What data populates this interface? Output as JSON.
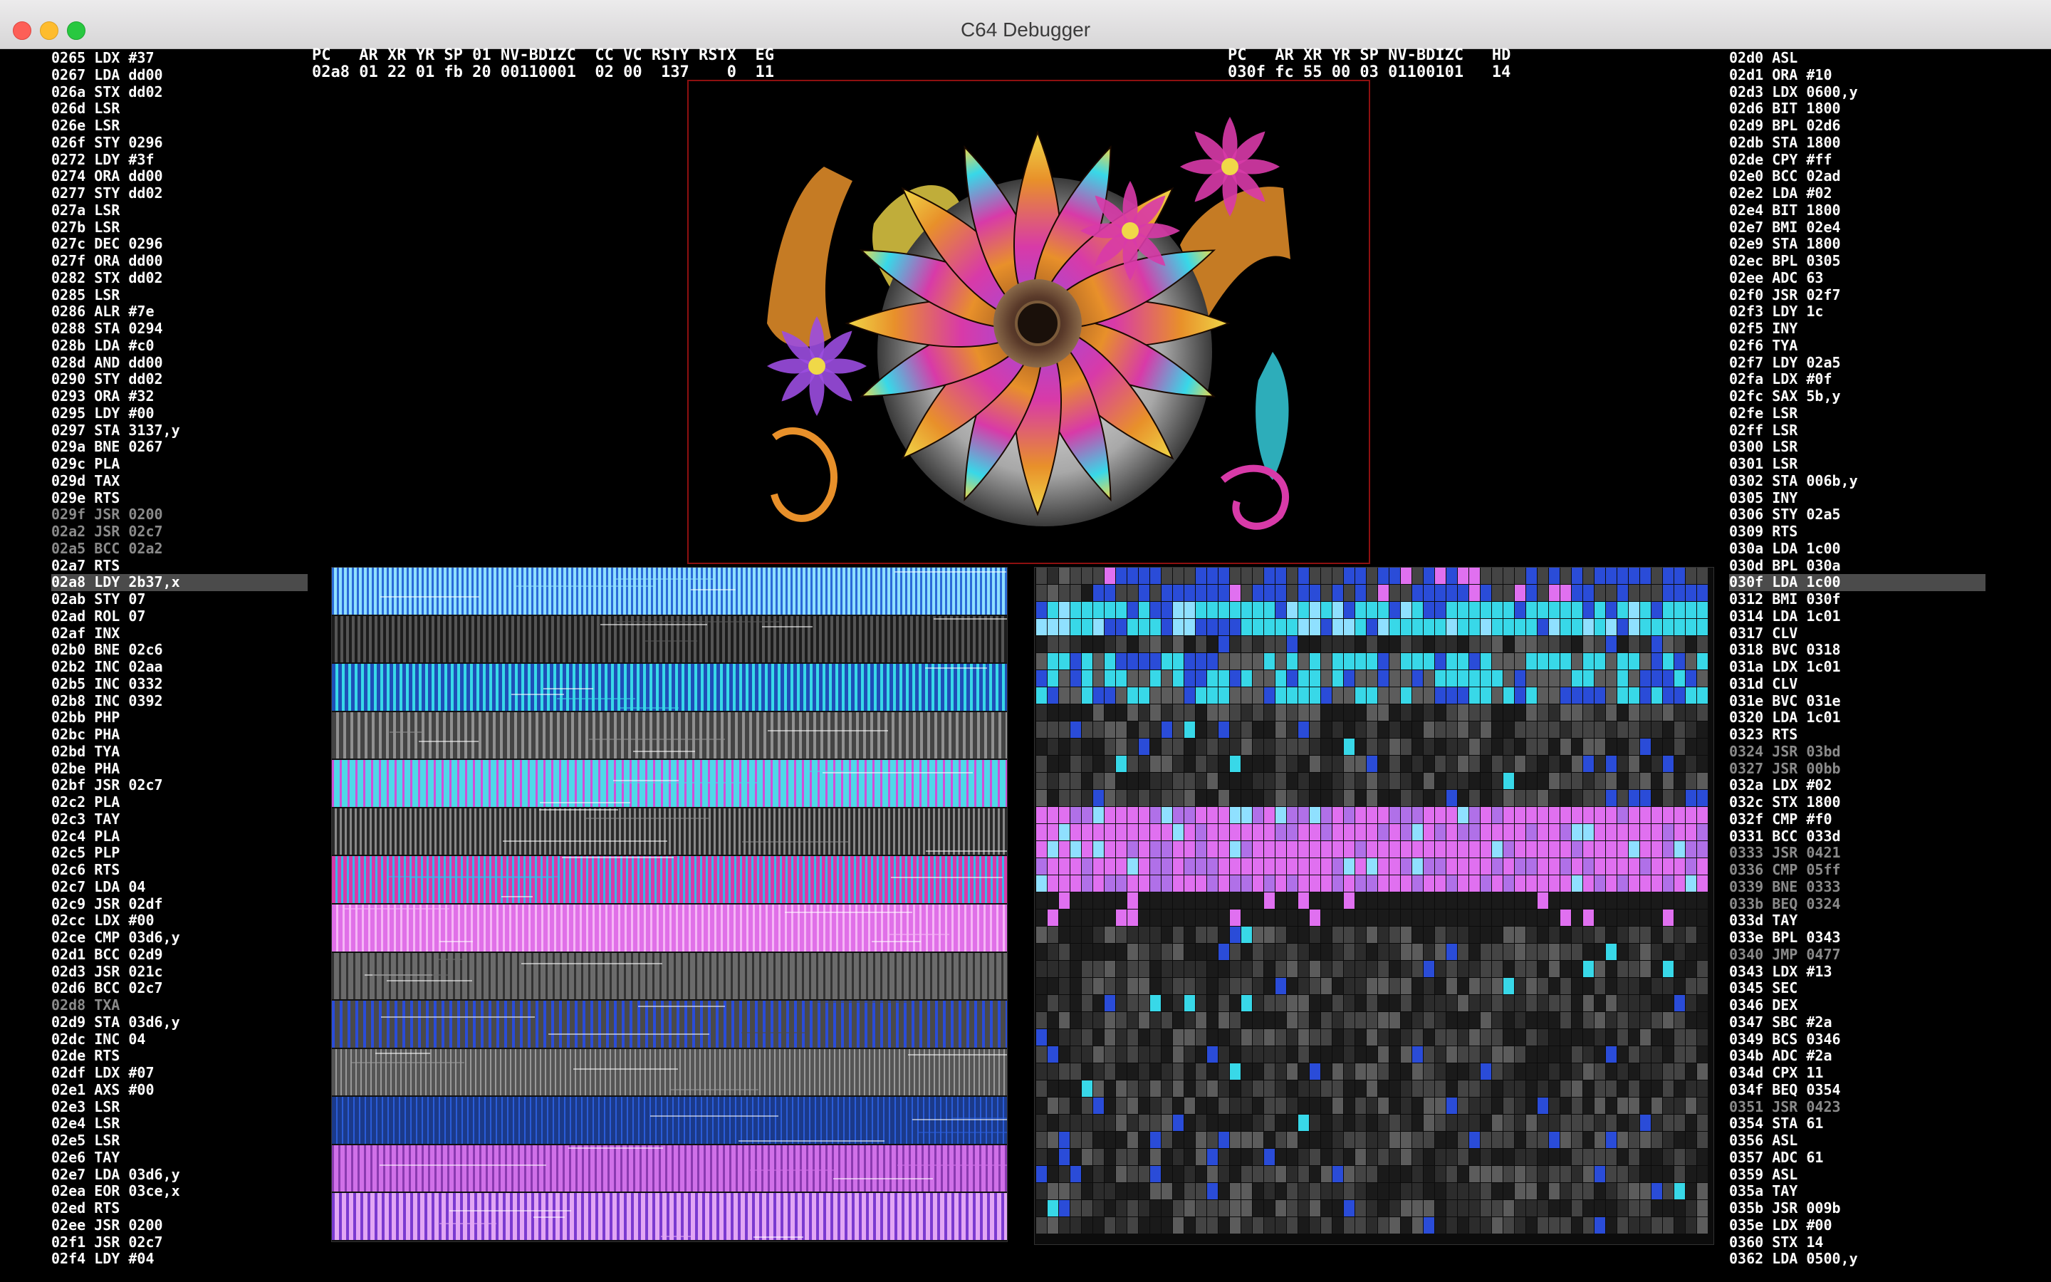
{
  "window": {
    "title": "C64 Debugger"
  },
  "titlebar_buttons": {
    "close": "close",
    "minimize": "minimize",
    "zoom": "zoom"
  },
  "registers": {
    "c64": {
      "header": "PC   AR XR YR SP 01 NV-BDIZC  CC VC RSTY RSTX  EG",
      "values": "02a8 01 22 01 fb 20 00110001  02 00  137    0  11"
    },
    "drive": {
      "header": "PC   AR XR YR SP NV-BDIZC   HD",
      "values": "030f fc 55 00 03 01100101   14"
    }
  },
  "disassembly_c64": [
    {
      "text": "0265 LDX #37",
      "s": ""
    },
    {
      "text": "0267 LDA dd00",
      "s": ""
    },
    {
      "text": "026a STX dd02",
      "s": ""
    },
    {
      "text": "026d LSR",
      "s": ""
    },
    {
      "text": "026e LSR",
      "s": ""
    },
    {
      "text": "026f STY 0296",
      "s": ""
    },
    {
      "text": "0272 LDY #3f",
      "s": ""
    },
    {
      "text": "0274 ORA dd00",
      "s": ""
    },
    {
      "text": "0277 STY dd02",
      "s": ""
    },
    {
      "text": "027a LSR",
      "s": ""
    },
    {
      "text": "027b LSR",
      "s": ""
    },
    {
      "text": "027c DEC 0296",
      "s": ""
    },
    {
      "text": "027f ORA dd00",
      "s": ""
    },
    {
      "text": "0282 STX dd02",
      "s": ""
    },
    {
      "text": "0285 LSR",
      "s": ""
    },
    {
      "text": "0286 ALR #7e",
      "s": ""
    },
    {
      "text": "0288 STA 0294",
      "s": ""
    },
    {
      "text": "028b LDA #c0",
      "s": ""
    },
    {
      "text": "028d AND dd00",
      "s": ""
    },
    {
      "text": "0290 STY dd02",
      "s": ""
    },
    {
      "text": "0293 ORA #32",
      "s": ""
    },
    {
      "text": "0295 LDY #00",
      "s": ""
    },
    {
      "text": "0297 STA 3137,y",
      "s": ""
    },
    {
      "text": "029a BNE 0267",
      "s": ""
    },
    {
      "text": "029c PLA",
      "s": ""
    },
    {
      "text": "029d TAX",
      "s": ""
    },
    {
      "text": "029e RTS",
      "s": ""
    },
    {
      "text": "029f JSR 0200",
      "s": "grey"
    },
    {
      "text": "02a2 JSR 02c7",
      "s": "grey"
    },
    {
      "text": "02a5 BCC 02a2",
      "s": "grey"
    },
    {
      "text": "02a7 RTS",
      "s": ""
    },
    {
      "text": "02a8 LDY 2b37,x",
      "s": "hl"
    },
    {
      "text": "02ab STY 07",
      "s": ""
    },
    {
      "text": "02ad ROL 07",
      "s": ""
    },
    {
      "text": "02af INX",
      "s": ""
    },
    {
      "text": "02b0 BNE 02c6",
      "s": ""
    },
    {
      "text": "02b2 INC 02aa",
      "s": ""
    },
    {
      "text": "02b5 INC 0332",
      "s": ""
    },
    {
      "text": "02b8 INC 0392",
      "s": ""
    },
    {
      "text": "02bb PHP",
      "s": ""
    },
    {
      "text": "02bc PHA",
      "s": ""
    },
    {
      "text": "02bd TYA",
      "s": ""
    },
    {
      "text": "02be PHA",
      "s": ""
    },
    {
      "text": "02bf JSR 02c7",
      "s": ""
    },
    {
      "text": "02c2 PLA",
      "s": ""
    },
    {
      "text": "02c3 TAY",
      "s": ""
    },
    {
      "text": "02c4 PLA",
      "s": ""
    },
    {
      "text": "02c5 PLP",
      "s": ""
    },
    {
      "text": "02c6 RTS",
      "s": ""
    },
    {
      "text": "02c7 LDA 04",
      "s": ""
    },
    {
      "text": "02c9 JSR 02df",
      "s": ""
    },
    {
      "text": "02cc LDX #00",
      "s": ""
    },
    {
      "text": "02ce CMP 03d6,y",
      "s": ""
    },
    {
      "text": "02d1 BCC 02d9",
      "s": ""
    },
    {
      "text": "02d3 JSR 021c",
      "s": ""
    },
    {
      "text": "02d6 BCC 02c7",
      "s": ""
    },
    {
      "text": "02d8 TXA",
      "s": "grey"
    },
    {
      "text": "02d9 STA 03d6,y",
      "s": ""
    },
    {
      "text": "02dc INC 04",
      "s": ""
    },
    {
      "text": "02de RTS",
      "s": ""
    },
    {
      "text": "02df LDX #07",
      "s": ""
    },
    {
      "text": "02e1 AXS #00",
      "s": ""
    },
    {
      "text": "02e3 LSR",
      "s": ""
    },
    {
      "text": "02e4 LSR",
      "s": ""
    },
    {
      "text": "02e5 LSR",
      "s": ""
    },
    {
      "text": "02e6 TAY",
      "s": ""
    },
    {
      "text": "02e7 LDA 03d6,y",
      "s": ""
    },
    {
      "text": "02ea EOR 03ce,x",
      "s": ""
    },
    {
      "text": "02ed RTS",
      "s": ""
    },
    {
      "text": "02ee JSR 0200",
      "s": ""
    },
    {
      "text": "02f1 JSR 02c7",
      "s": ""
    },
    {
      "text": "02f4 LDY #04",
      "s": ""
    }
  ],
  "disassembly_drive": [
    {
      "text": "02d0 ASL",
      "s": ""
    },
    {
      "text": "02d1 ORA #10",
      "s": ""
    },
    {
      "text": "02d3 LDX 0600,y",
      "s": ""
    },
    {
      "text": "02d6 BIT 1800",
      "s": ""
    },
    {
      "text": "02d9 BPL 02d6",
      "s": ""
    },
    {
      "text": "02db STA 1800",
      "s": ""
    },
    {
      "text": "02de CPY #ff",
      "s": ""
    },
    {
      "text": "02e0 BCC 02ad",
      "s": ""
    },
    {
      "text": "02e2 LDA #02",
      "s": ""
    },
    {
      "text": "02e4 BIT 1800",
      "s": ""
    },
    {
      "text": "02e7 BMI 02e4",
      "s": ""
    },
    {
      "text": "02e9 STA 1800",
      "s": ""
    },
    {
      "text": "02ec BPL 0305",
      "s": ""
    },
    {
      "text": "02ee ADC 63",
      "s": ""
    },
    {
      "text": "02f0 JSR 02f7",
      "s": ""
    },
    {
      "text": "02f3 LDY 1c",
      "s": ""
    },
    {
      "text": "02f5 INY",
      "s": ""
    },
    {
      "text": "02f6 TYA",
      "s": ""
    },
    {
      "text": "02f7 LDY 02a5",
      "s": ""
    },
    {
      "text": "02fa LDX #0f",
      "s": ""
    },
    {
      "text": "02fc SAX 5b,y",
      "s": ""
    },
    {
      "text": "02fe LSR",
      "s": ""
    },
    {
      "text": "02ff LSR",
      "s": ""
    },
    {
      "text": "0300 LSR",
      "s": ""
    },
    {
      "text": "0301 LSR",
      "s": ""
    },
    {
      "text": "0302 STA 006b,y",
      "s": ""
    },
    {
      "text": "0305 INY",
      "s": ""
    },
    {
      "text": "0306 STY 02a5",
      "s": ""
    },
    {
      "text": "0309 RTS",
      "s": ""
    },
    {
      "text": "030a LDA 1c00",
      "s": ""
    },
    {
      "text": "030d BPL 030a",
      "s": ""
    },
    {
      "text": "030f LDA 1c00",
      "s": "hl"
    },
    {
      "text": "0312 BMI 030f",
      "s": ""
    },
    {
      "text": "0314 LDA 1c01",
      "s": ""
    },
    {
      "text": "0317 CLV",
      "s": ""
    },
    {
      "text": "0318 BVC 0318",
      "s": ""
    },
    {
      "text": "031a LDX 1c01",
      "s": ""
    },
    {
      "text": "031d CLV",
      "s": ""
    },
    {
      "text": "031e BVC 031e",
      "s": ""
    },
    {
      "text": "0320 LDA 1c01",
      "s": ""
    },
    {
      "text": "0323 RTS",
      "s": ""
    },
    {
      "text": "0324 JSR 03bd",
      "s": "grey"
    },
    {
      "text": "0327 JSR 00bb",
      "s": "grey"
    },
    {
      "text": "032a LDX #02",
      "s": ""
    },
    {
      "text": "032c STX 1800",
      "s": ""
    },
    {
      "text": "032f CMP #f0",
      "s": ""
    },
    {
      "text": "0331 BCC 033d",
      "s": ""
    },
    {
      "text": "0333 JSR 0421",
      "s": "grey"
    },
    {
      "text": "0336 CMP 05ff",
      "s": "grey"
    },
    {
      "text": "0339 BNE 0333",
      "s": "grey"
    },
    {
      "text": "033b BEQ 0324",
      "s": "grey"
    },
    {
      "text": "033d TAY",
      "s": ""
    },
    {
      "text": "033e BPL 0343",
      "s": ""
    },
    {
      "text": "0340 JMP 0477",
      "s": "grey"
    },
    {
      "text": "0343 LDX #13",
      "s": ""
    },
    {
      "text": "0345 SEC",
      "s": ""
    },
    {
      "text": "0346 DEX",
      "s": ""
    },
    {
      "text": "0347 SBC #2a",
      "s": ""
    },
    {
      "text": "0349 BCS 0346",
      "s": ""
    },
    {
      "text": "034b ADC #2a",
      "s": ""
    },
    {
      "text": "034d CPX 11",
      "s": ""
    },
    {
      "text": "034f BEQ 0354",
      "s": ""
    },
    {
      "text": "0351 JSR 0423",
      "s": "grey"
    },
    {
      "text": "0354 STA 61",
      "s": ""
    },
    {
      "text": "0356 ASL",
      "s": ""
    },
    {
      "text": "0357 ADC 61",
      "s": ""
    },
    {
      "text": "0359 ASL",
      "s": ""
    },
    {
      "text": "035a TAY",
      "s": ""
    },
    {
      "text": "035b JSR 009b",
      "s": ""
    },
    {
      "text": "035e LDX #00",
      "s": ""
    },
    {
      "text": "0360 STX 14",
      "s": ""
    },
    {
      "text": "0362 LDA 0500,y",
      "s": ""
    }
  ],
  "palette": {
    "orange": "#e8902a",
    "magenta": "#d83aa8",
    "cyan": "#38d8e8",
    "yellow": "#f0d848",
    "blue": "#2a4cd8",
    "violet": "#9b4ce0",
    "brown": "#8a4a1e",
    "grey": "#9a9a9a"
  },
  "memory_map_bands": [
    {
      "c1": "#2b6ad8",
      "c2": "#8fe0ff"
    },
    {
      "c1": "#1c1c1c",
      "c2": "#555555"
    },
    {
      "c1": "#1e4fb8",
      "c2": "#38d8e8"
    },
    {
      "c1": "#444444",
      "c2": "#909090"
    },
    {
      "c1": "#d04fd8",
      "c2": "#4fd8e8"
    },
    {
      "c1": "#2a2a2a",
      "c2": "#888888"
    },
    {
      "c1": "#d83aa8",
      "c2": "#38b8e8"
    },
    {
      "c1": "#e070e8",
      "c2": "#f6b6f6"
    },
    {
      "c1": "#333333",
      "c2": "#6b6b6b"
    },
    {
      "c1": "#2a4cd8",
      "c2": "#4a4a4a"
    },
    {
      "c1": "#555555",
      "c2": "#999999"
    },
    {
      "c1": "#1b3a8a",
      "c2": "#2a5cd8"
    },
    {
      "c1": "#8a3ab0",
      "c2": "#d070e8"
    },
    {
      "c1": "#7a3ad0",
      "c2": "#e2a6f4"
    }
  ],
  "memory_dump_colors": [
    "#1a1a1a",
    "#2c2c2c",
    "#444444",
    "#5c5c5c",
    "#7a7a7a",
    "#2a4cd8",
    "#38d8e8",
    "#b070e8",
    "#e070f0",
    "#8fe0ff"
  ]
}
